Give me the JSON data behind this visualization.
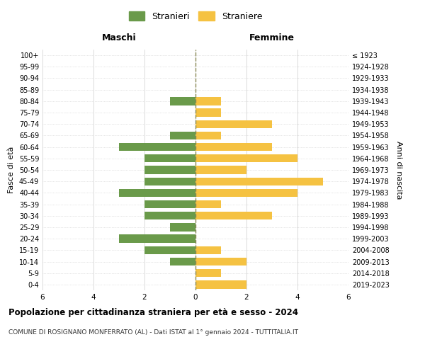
{
  "age_groups": [
    "0-4",
    "5-9",
    "10-14",
    "15-19",
    "20-24",
    "25-29",
    "30-34",
    "35-39",
    "40-44",
    "45-49",
    "50-54",
    "55-59",
    "60-64",
    "65-69",
    "70-74",
    "75-79",
    "80-84",
    "85-89",
    "90-94",
    "95-99",
    "100+"
  ],
  "birth_years": [
    "2019-2023",
    "2014-2018",
    "2009-2013",
    "2004-2008",
    "1999-2003",
    "1994-1998",
    "1989-1993",
    "1984-1988",
    "1979-1983",
    "1974-1978",
    "1969-1973",
    "1964-1968",
    "1959-1963",
    "1954-1958",
    "1949-1953",
    "1944-1948",
    "1939-1943",
    "1934-1938",
    "1929-1933",
    "1924-1928",
    "≤ 1923"
  ],
  "maschi": [
    0,
    0,
    1,
    2,
    3,
    1,
    2,
    2,
    3,
    2,
    2,
    2,
    3,
    1,
    0,
    0,
    1,
    0,
    0,
    0,
    0
  ],
  "femmine": [
    2,
    1,
    2,
    1,
    0,
    0,
    3,
    1,
    4,
    5,
    2,
    4,
    3,
    1,
    3,
    1,
    1,
    0,
    0,
    0,
    0
  ],
  "color_maschi": "#6a9a4a",
  "color_femmine": "#f5c242",
  "background_color": "#ffffff",
  "grid_color": "#cccccc",
  "dashed_line_color": "#888855",
  "title": "Popolazione per cittadinanza straniera per età e sesso - 2024",
  "subtitle": "COMUNE DI ROSIGNANO MONFERRATO (AL) - Dati ISTAT al 1° gennaio 2024 - TUTTITALIA.IT",
  "xlabel_left": "Maschi",
  "xlabel_right": "Femmine",
  "ylabel_left": "Fasce di età",
  "ylabel_right": "Anni di nascita",
  "legend_stranieri": "Stranieri",
  "legend_straniere": "Straniere",
  "xlim": 6
}
